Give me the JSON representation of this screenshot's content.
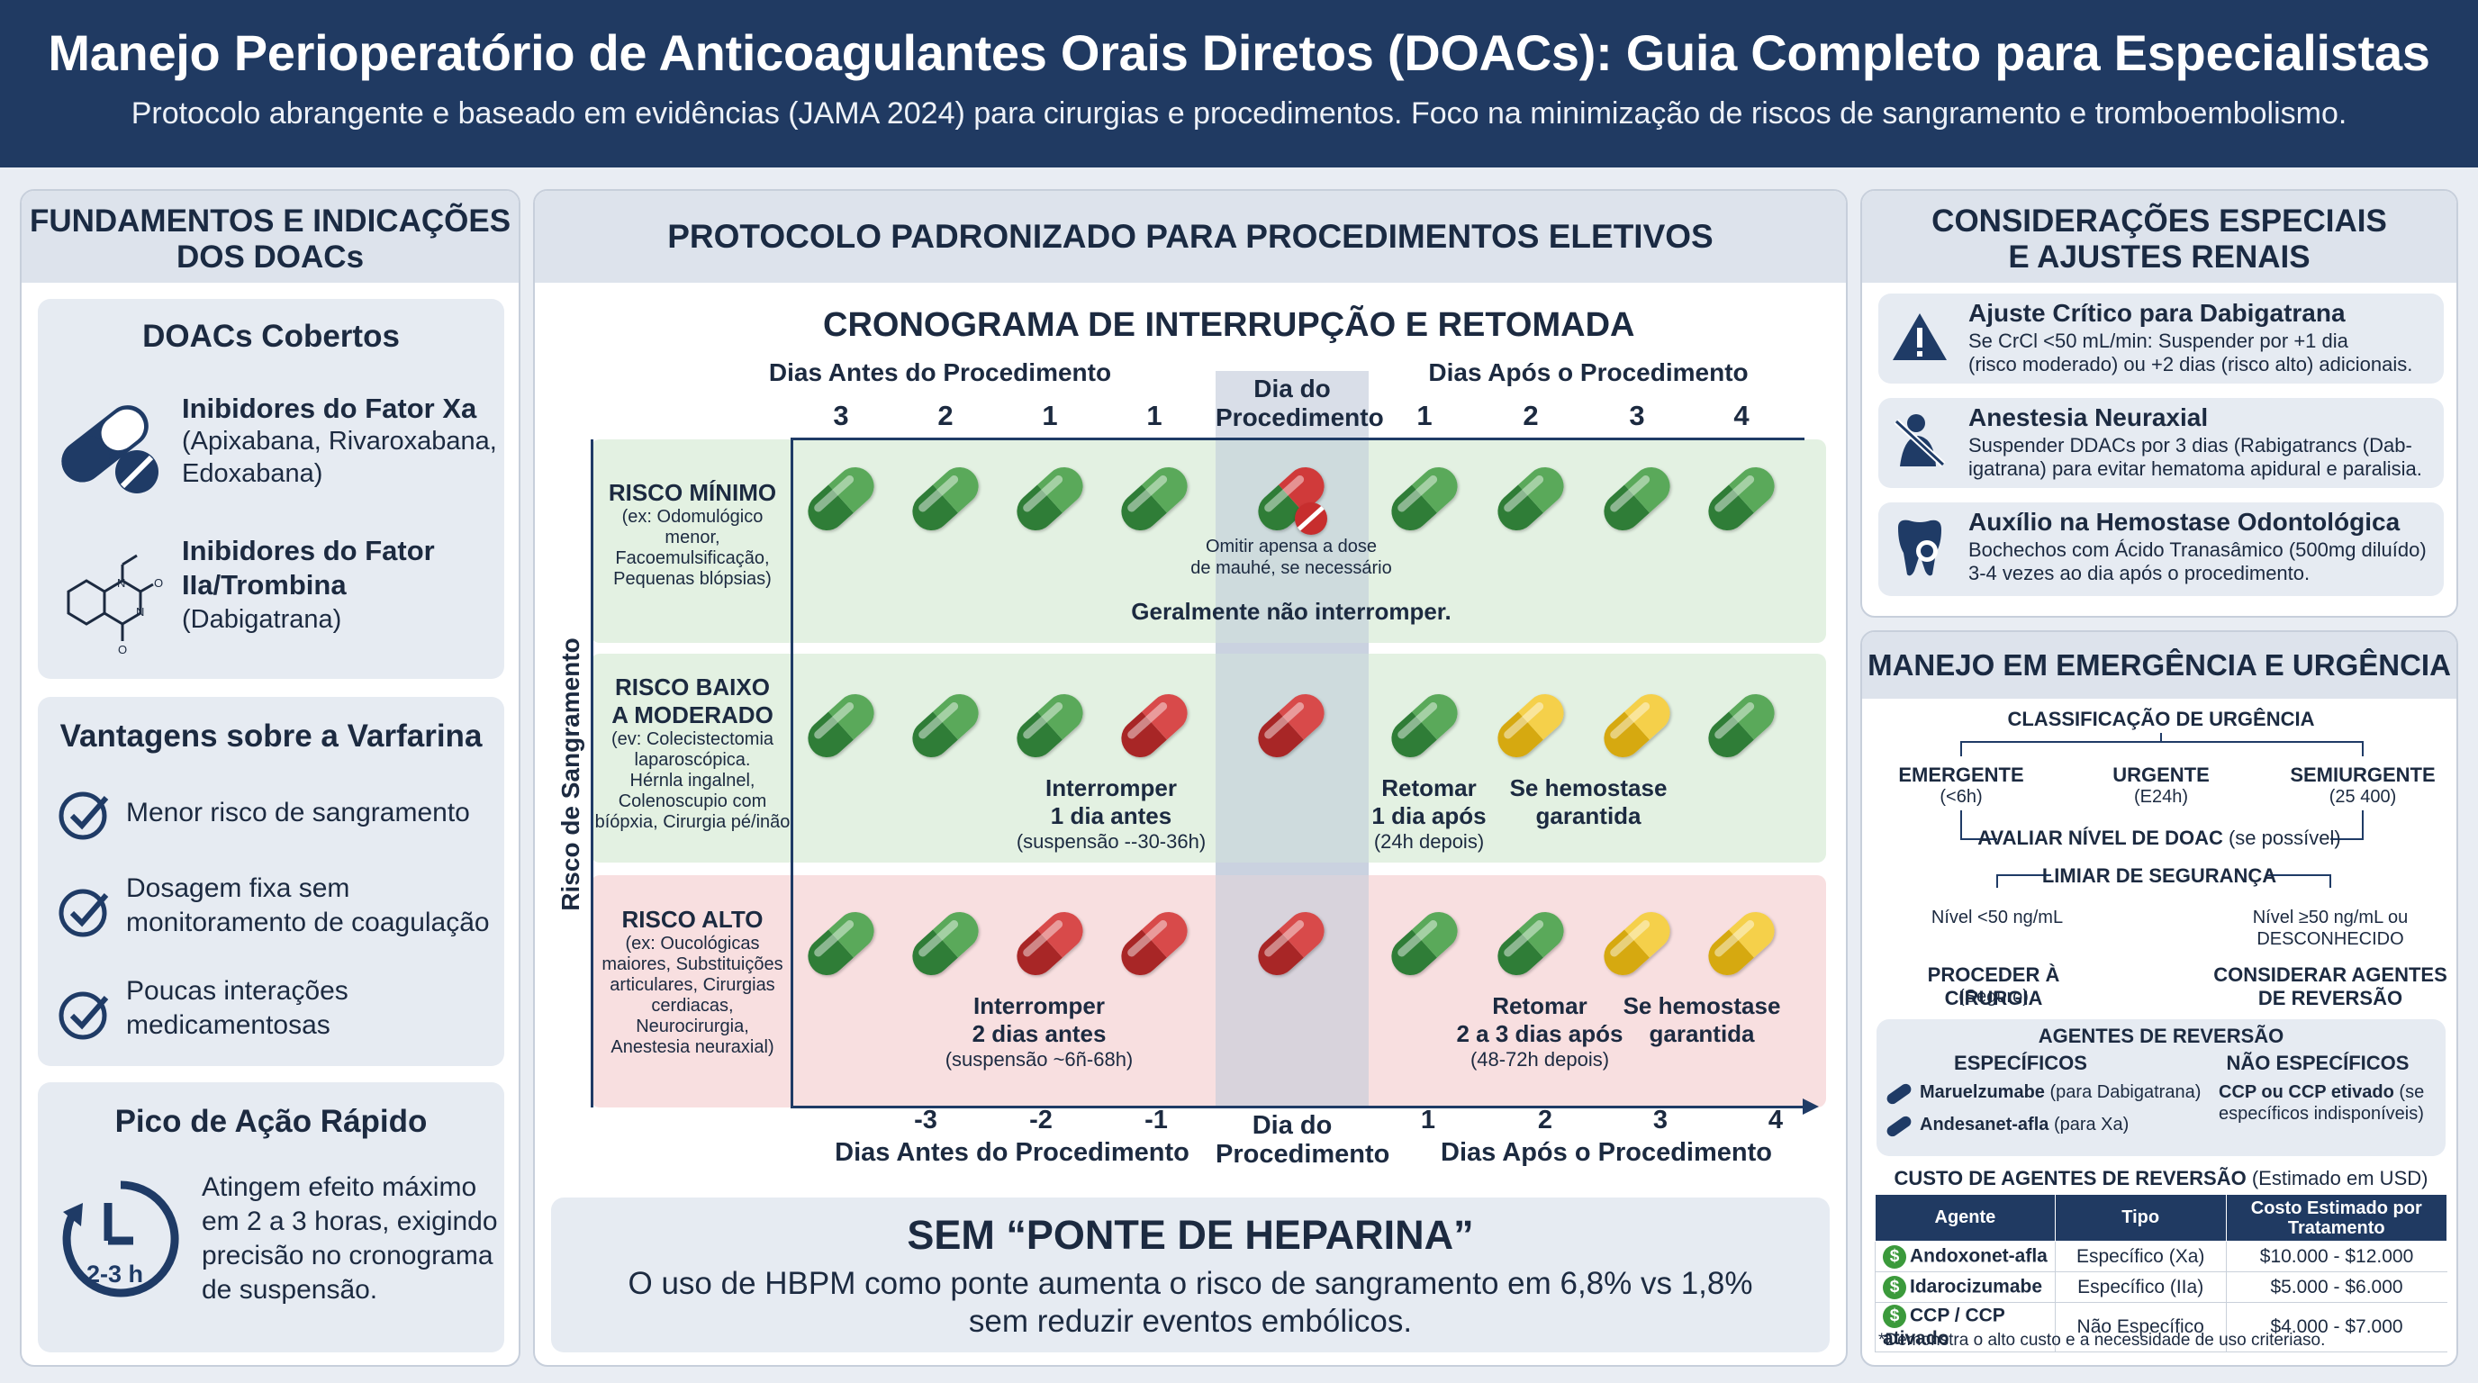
{
  "header": {
    "title": "Manejo Perioperatório de Anticoagulantes Orais Diretos (DOACs): Guia Completo para Especialistas",
    "subtitle": "Protocolo abrangente e baseado em evidências (JAMA 2024) para cirurgias e procedimentos. Foco na minimização de riscos de sangramento e tromboembolismo."
  },
  "left": {
    "title1": "FUNDAMENTOS E INDICAÇÕES",
    "title2": "DOS DOACs",
    "covered": {
      "title": "DOACs Cobertos",
      "xa_title": "Inibidores do Fator Xa",
      "xa_desc1": "(Apixabana, Rivaroxabana,",
      "xa_desc2": "Edoxabana)",
      "iia_title1": "Inibidores do Fator",
      "iia_title2": "IIa/Trombina",
      "iia_desc": "(Dabigatrana)"
    },
    "adv": {
      "title": "Vantagens sobre a Varfarina",
      "items": [
        [
          "Menor risco de sangramento",
          ""
        ],
        [
          "Dosagem fixa sem",
          "monitoramento de coagulação"
        ],
        [
          "Poucas interações",
          "medicamentosas"
        ]
      ]
    },
    "peak": {
      "title": "Pico de Ação Rápido",
      "icon_label": "2-3 h",
      "lines": [
        "Atingem efeito máximo",
        "em 2 a 3 horas, exigindo",
        "precisão no cronograma",
        "de suspensão."
      ]
    }
  },
  "center": {
    "title": "PROTOCOLO PADRONIZADO PARA PROCEDIMENTOS ELETIVOS",
    "chart_title": "CRONOGRAMA DE INTERRUPÇÃO E RETOMADA",
    "before_label": "Dias Antes do Procedimento",
    "after_label": "Dias Após o Procedimento",
    "day_label1": "Dia do",
    "day_label2": "Procedimento",
    "top_days": [
      "3",
      "2",
      "1",
      "1",
      "1",
      "2",
      "3",
      "4"
    ],
    "bottom_days": [
      "-3",
      "-2",
      "-1",
      "1",
      "2",
      "3",
      "4"
    ],
    "yaxis": "Risco de Sangramento",
    "rows": [
      {
        "title1": "RISCO MÍNIMO",
        "title2": "",
        "desc": [
          "(ex: Odomulógico",
          "menor,",
          "Facoemulsificação,",
          "Pequenas blópsias)"
        ],
        "pills": [
          "G",
          "G",
          "G",
          "G",
          "GR",
          "G",
          "G",
          "G",
          "G"
        ]
      },
      {
        "title1": "RISCO BAIXO",
        "title2": "A MODERADO",
        "desc": [
          "(ev: Colecistectomia",
          "laparoscópica.",
          "Hérnla ingalnel,",
          "Colenoscupio com",
          "bíópxia, Cirurgia pé/inão"
        ],
        "pills": [
          "G",
          "G",
          "G",
          "R",
          "R",
          "G",
          "Y",
          "Y",
          "G"
        ]
      },
      {
        "title1": "RISCO ALTO",
        "title2": "",
        "desc": [
          "(ex: Oucológicas",
          "maiores, Substituições",
          "articulares, Cirurgias",
          "cerdiacas,",
          "Neurocirurgia,",
          "Anestesia neuraxial)"
        ],
        "pills": [
          "G",
          "G",
          "R",
          "R",
          "R",
          "G",
          "G",
          "Y",
          "Y"
        ]
      }
    ],
    "min_note1": "Omitir apensa a dose",
    "min_note2": "de mauhé, se necessário",
    "min_general": "Geralmente não interromper.",
    "mod_stop": [
      "Interromper",
      "1 dia antes",
      "(suspensão --30-36h)"
    ],
    "mod_resume": [
      "Retomar",
      "1 dia após",
      "(24h depois)"
    ],
    "mod_hemo": [
      "Se hemostase",
      "garantida"
    ],
    "high_stop": [
      "Interromper",
      "2 dias antes",
      "(suspensão ~6ñ-68h)"
    ],
    "high_resume": [
      "Retomar",
      "2 a 3 dias após",
      "(48-72h depois)"
    ],
    "high_hemo": [
      "Se hemostase",
      "garantida"
    ],
    "bridge_title": "SEM “PONTE DE HEPARINA”",
    "bridge_text1": "O uso de HBPM como ponte aumenta o risco de sangramento em 6,8% vs 1,8%",
    "bridge_text2": "sem reduzir eventos embólicos."
  },
  "right": {
    "special_title1": "CONSIDERAÇÕES ESPECIAIS",
    "special_title2": "E AJUSTES RENAIS",
    "special": [
      {
        "title": "Ajuste Crítico para Dabigatrana",
        "lines": [
          "Se CrCl <50 mL/min: Suspender por +1 dia",
          "(risco moderado) ou +2 dias (risco alto) adicionais."
        ]
      },
      {
        "title": "Anestesia Neuraxial",
        "lines": [
          "Suspender DDACs por 3 dias (Rabigatrancs (Dab-",
          "igatrana) para evitar hematoma apidural e paralisia."
        ]
      },
      {
        "title": "Auxílio na Hemostase Odontológica",
        "lines": [
          "Bochechos com Ácido Tranasâmico (500mg diluído)",
          "3-4 vezes ao dia após o procedimento."
        ]
      }
    ],
    "em_title": "MANEJO EM EMERGÊNCIA E URGÊNCIA",
    "classification": "CLASSIFICAÇÃO DE URGÊNCIA",
    "urg": [
      {
        "t": "EMERGENTE",
        "s": "(<6h)"
      },
      {
        "t": "URGENTE",
        "s": "(E24h)"
      },
      {
        "t": "SEMIURGENTE",
        "s": "(25 400)"
      }
    ],
    "evaluate": "AVALIAR NÍVEL DE DOAC",
    "evaluate_paren": "(se possível)",
    "threshold": "LIMIAR DE SEGURANÇA",
    "low_level": "Nível <50 ng/mL",
    "high_level1": "Nível ≥50 ng/mL ou",
    "high_level2": "DESCONHECIDO",
    "proceed1": "PROCEDER À CIRURGIA",
    "proceed2": "(Seguro)",
    "consider1": "CONSIDERAR AGENTES",
    "consider2": "DE REVERSÃO",
    "agents_title": "AGENTES DE REVERSÃO",
    "specific": "ESPECÍFICOS",
    "nonspecific": "NÃO ESPECÍFICOS",
    "spec1_name": "Maruelzumabe",
    "spec1_note": "(para Dabigatrana)",
    "spec2_name": "Andesanet-afla",
    "spec2_note": "(para Xa)",
    "nonspec1": "CCP ou CCP etivado",
    "nonspec1_b": " (se",
    "nonspec2": "específicos indisponíveis)",
    "cost_title": "CUSTO DE AGENTES DE REVERSÃO",
    "cost_paren": "(Estimado em USD)",
    "cost_headers": [
      "Agente",
      "Tipo",
      "Costo Estimado por Tratamento"
    ],
    "cost_rows": [
      [
        "Andoxonet-afla",
        "Específico (Xa)",
        "$10.000 - $12.000"
      ],
      [
        "Idarocizumabe",
        "Específico (IIa)",
        "$5.000 - $6.000"
      ],
      [
        "CCP / CCP ativado",
        "Não Específico",
        "$4.000 - $7.000"
      ]
    ],
    "footnote": "*Demonstra o alto custo e a necessidade de uso criteriaso.",
    "dollar": "$"
  },
  "colors": {
    "navy": "#203a62",
    "green": "#2f7d37",
    "red": "#c23434",
    "yellow": "#e8c02a"
  }
}
